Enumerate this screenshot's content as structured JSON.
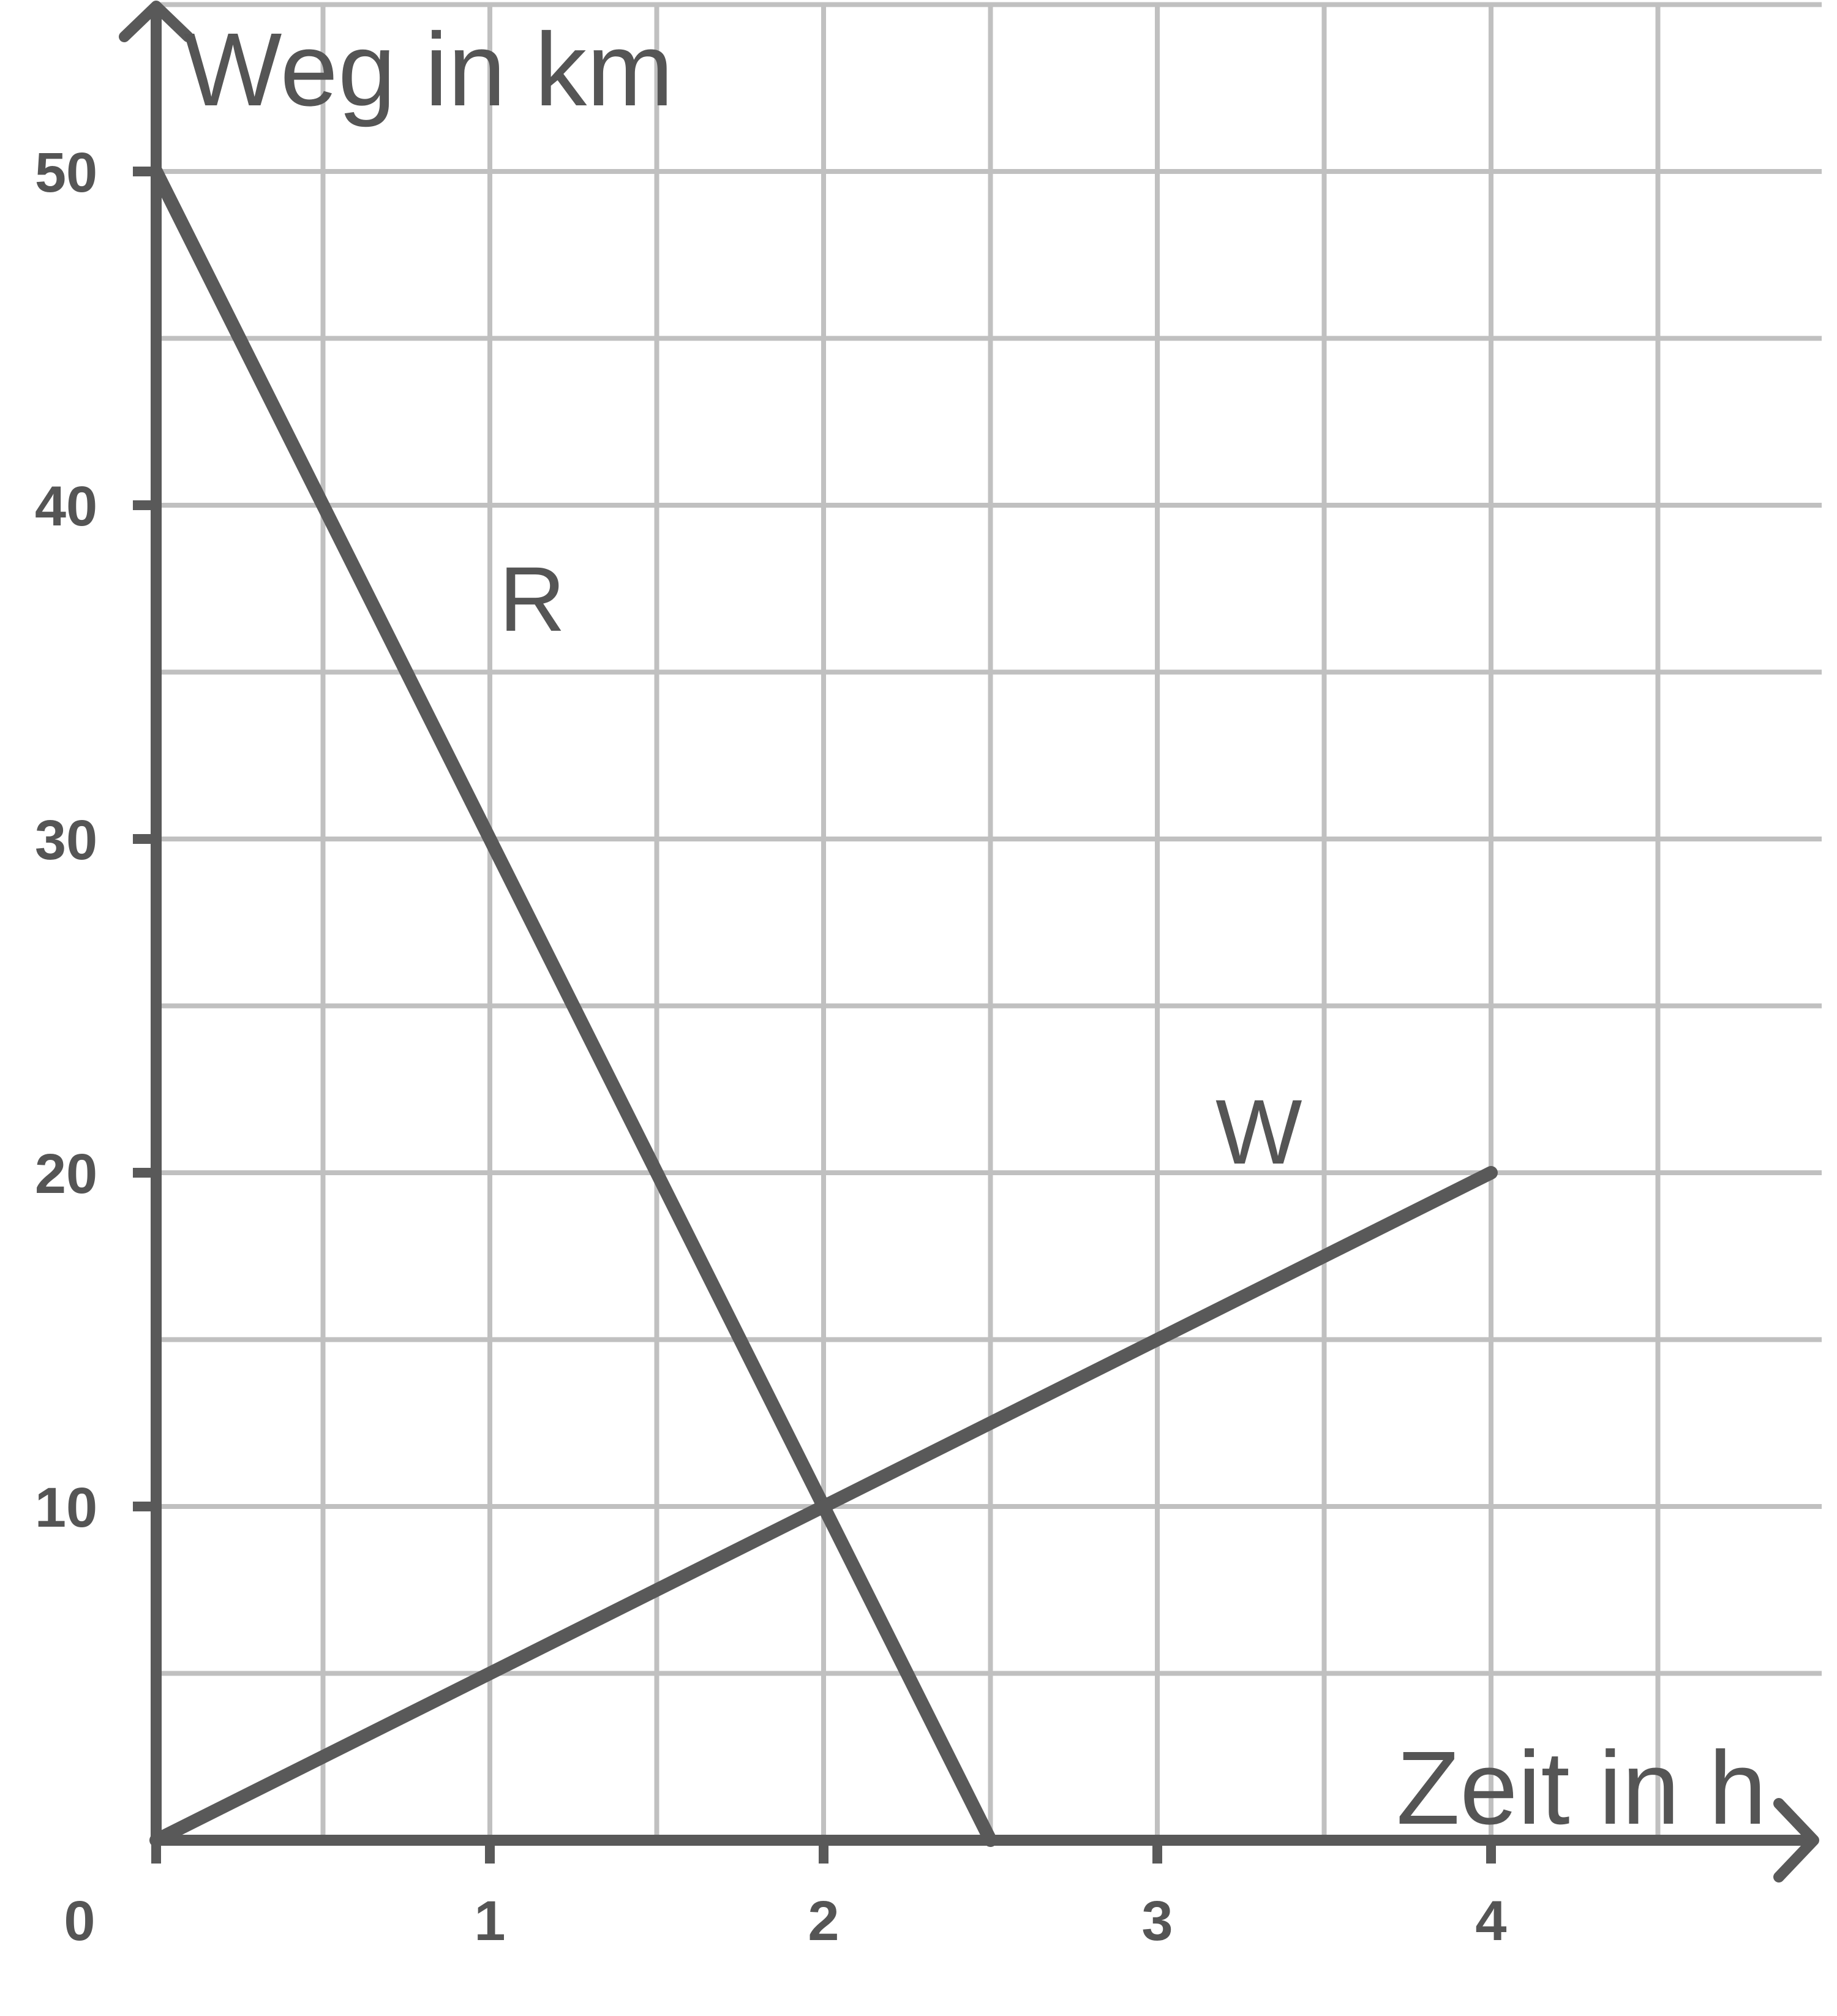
{
  "chart_data": {
    "type": "line",
    "xlabel": "Zeit in h",
    "ylabel": "Weg in km",
    "origin_label": "0",
    "xlim": [
      0,
      5
    ],
    "ylim": [
      0,
      55
    ],
    "x_ticks": [
      1,
      2,
      3,
      4
    ],
    "x_tick_labels": [
      "1",
      "2",
      "3",
      "4"
    ],
    "y_ticks": [
      10,
      20,
      30,
      40,
      50
    ],
    "y_tick_labels": [
      "10",
      "20",
      "30",
      "40",
      "50"
    ],
    "grid": true,
    "grid_step_x": 0.5,
    "grid_step_y": 5,
    "colors": {
      "line": "#595959",
      "grid": "#c0c0c0",
      "axis": "#595959"
    },
    "series": [
      {
        "name": "R",
        "points": [
          [
            0,
            50
          ],
          [
            2.5,
            0
          ]
        ]
      },
      {
        "name": "W",
        "points": [
          [
            0,
            0
          ],
          [
            4,
            20
          ]
        ]
      }
    ]
  }
}
